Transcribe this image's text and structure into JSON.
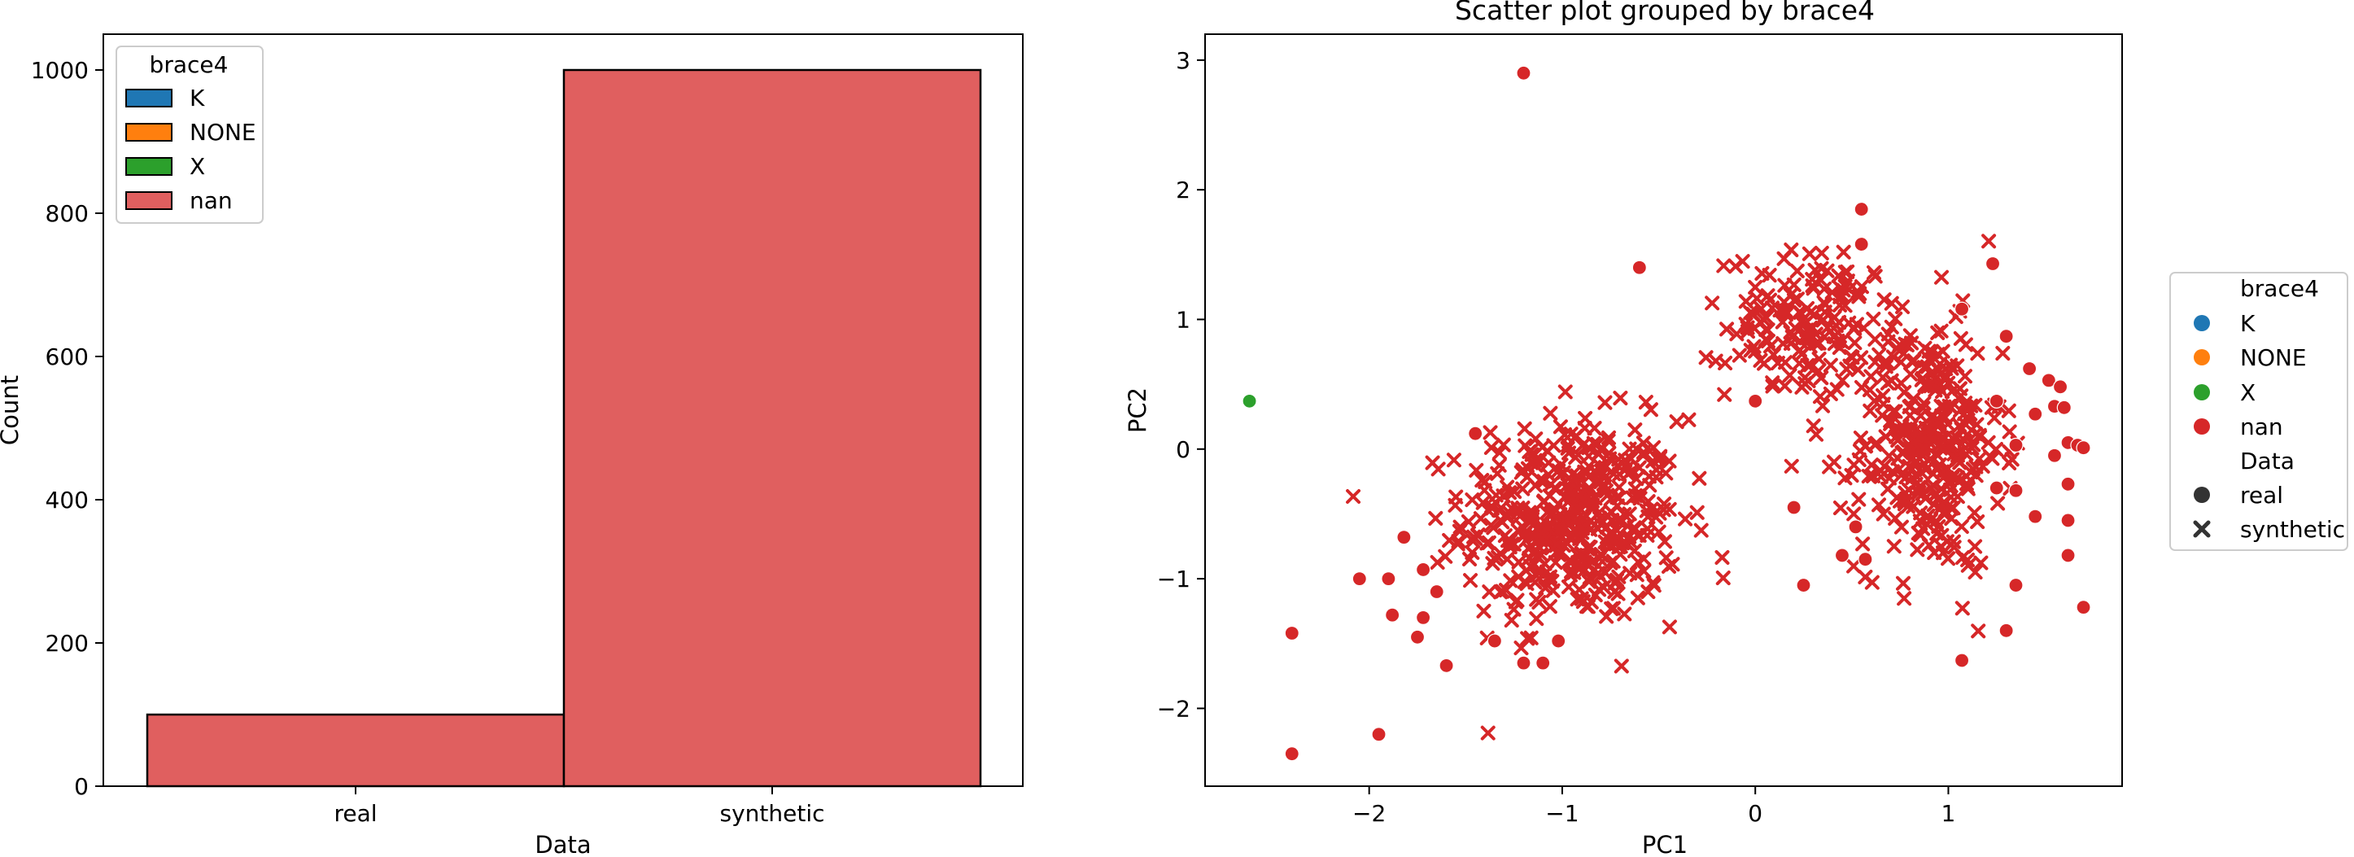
{
  "colors": {
    "K": "#1f77b4",
    "NONE": "#ff7f0e",
    "X": "#2ca02c",
    "nan": "#d62728",
    "hist_nan_fill": "#e05f5f"
  },
  "chart_data": [
    {
      "type": "bar",
      "title": "",
      "xlabel": "Data",
      "ylabel": "Count",
      "categories": [
        "real",
        "synthetic"
      ],
      "series": [
        {
          "name": "K",
          "values": [
            0,
            0
          ]
        },
        {
          "name": "NONE",
          "values": [
            0,
            0
          ]
        },
        {
          "name": "X",
          "values": [
            0,
            0
          ]
        },
        {
          "name": "nan",
          "values": [
            100,
            1000
          ]
        }
      ],
      "ylim": [
        0,
        1050
      ],
      "yticks": [
        0,
        200,
        400,
        600,
        800,
        1000
      ],
      "grid": false,
      "legend": {
        "title": "brace4",
        "entries": [
          "K",
          "NONE",
          "X",
          "nan"
        ],
        "placement": "top-left"
      }
    },
    {
      "type": "scatter",
      "title": "Scatter plot grouped by brace4",
      "xlabel": "PC1",
      "ylabel": "PC2",
      "xlim": [
        -2.85,
        1.9
      ],
      "ylim": [
        -2.6,
        3.2
      ],
      "xticks": [
        -2,
        -1,
        0,
        1
      ],
      "yticks": [
        -2,
        -1,
        0,
        1,
        2,
        3
      ],
      "grid": false,
      "legend": {
        "placement": "outside-right",
        "hue_title": "brace4",
        "hue_entries": [
          "K",
          "NONE",
          "X",
          "nan"
        ],
        "style_title": "Data",
        "style_entries": [
          {
            "label": "real",
            "marker": "circle"
          },
          {
            "label": "synthetic",
            "marker": "x"
          }
        ]
      },
      "series": [
        {
          "name": "X",
          "marker": "circle",
          "points": [
            [
              -2.62,
              0.37
            ]
          ]
        },
        {
          "name": "nan",
          "marker": "circle",
          "points": [
            [
              -1.2,
              2.9
            ],
            [
              -0.6,
              1.4
            ],
            [
              0.55,
              1.85
            ],
            [
              0.55,
              1.58
            ],
            [
              1.23,
              1.43
            ],
            [
              1.07,
              1.08
            ],
            [
              1.3,
              0.87
            ],
            [
              1.42,
              0.62
            ],
            [
              1.52,
              0.53
            ],
            [
              1.58,
              0.48
            ],
            [
              1.25,
              0.37
            ],
            [
              1.55,
              0.33
            ],
            [
              1.6,
              0.32
            ],
            [
              1.45,
              0.27
            ],
            [
              1.35,
              0.03
            ],
            [
              1.62,
              0.05
            ],
            [
              1.67,
              0.03
            ],
            [
              1.7,
              0.01
            ],
            [
              1.55,
              -0.05
            ],
            [
              1.62,
              -0.27
            ],
            [
              1.25,
              -0.3
            ],
            [
              1.35,
              -0.32
            ],
            [
              1.45,
              -0.52
            ],
            [
              1.62,
              -0.55
            ],
            [
              1.62,
              -0.82
            ],
            [
              1.35,
              -1.05
            ],
            [
              1.3,
              -1.4
            ],
            [
              1.07,
              -1.63
            ],
            [
              1.7,
              -1.22
            ],
            [
              0.0,
              0.37
            ],
            [
              0.52,
              -0.6
            ],
            [
              0.45,
              -0.82
            ],
            [
              0.57,
              -0.85
            ],
            [
              0.25,
              -1.05
            ],
            [
              0.2,
              -0.45
            ],
            [
              -1.45,
              0.12
            ],
            [
              -1.9,
              -1.0
            ],
            [
              -1.82,
              -0.68
            ],
            [
              -1.72,
              -0.93
            ],
            [
              -1.65,
              -1.1
            ],
            [
              -1.88,
              -1.28
            ],
            [
              -1.72,
              -1.3
            ],
            [
              -1.75,
              -1.45
            ],
            [
              -1.6,
              -1.67
            ],
            [
              -2.05,
              -1.0
            ],
            [
              -2.4,
              -1.42
            ],
            [
              -2.4,
              -2.35
            ],
            [
              -1.95,
              -2.2
            ],
            [
              -1.35,
              -1.48
            ],
            [
              -1.02,
              -1.48
            ],
            [
              -1.1,
              -1.65
            ],
            [
              -1.2,
              -1.65
            ]
          ]
        },
        {
          "name": "nan",
          "marker": "x",
          "clusters": [
            {
              "center": [
                -0.95,
                -0.55
              ],
              "spread": [
                0.33,
                0.46
              ],
              "count": 470
            },
            {
              "center": [
                0.3,
                0.95
              ],
              "spread": [
                0.26,
                0.33
              ],
              "count": 180
            },
            {
              "center": [
                0.9,
                0.0
              ],
              "spread": [
                0.22,
                0.55
              ],
              "count": 340
            }
          ]
        }
      ]
    }
  ]
}
